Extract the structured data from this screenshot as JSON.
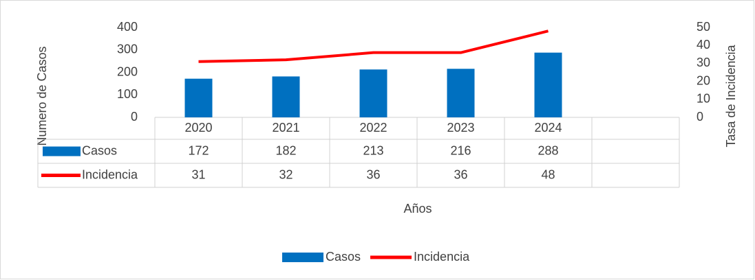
{
  "chart_data": {
    "type": "bar",
    "x_label": "Años",
    "y_label": "Numero de Casos",
    "y2_label": "Tasa de Incidencia",
    "categories": [
      "2020",
      "2021",
      "2022",
      "2023",
      "2024",
      null
    ],
    "series": [
      {
        "name": "Casos",
        "type": "bar",
        "color": "#0070c0",
        "values": [
          172,
          182,
          213,
          216,
          288,
          null
        ]
      },
      {
        "name": "Incidencia",
        "type": "line",
        "axis": "y2",
        "color": "#ff0000",
        "values": [
          31,
          32,
          36,
          36,
          48,
          null
        ]
      }
    ],
    "ylim": [
      0,
      400
    ],
    "yticks": [
      0,
      100,
      200,
      300,
      400
    ],
    "y2lim": [
      0,
      50
    ],
    "y2ticks": [
      0,
      10,
      20,
      30,
      40,
      50
    ],
    "legend": "bottom",
    "data_table": true
  }
}
